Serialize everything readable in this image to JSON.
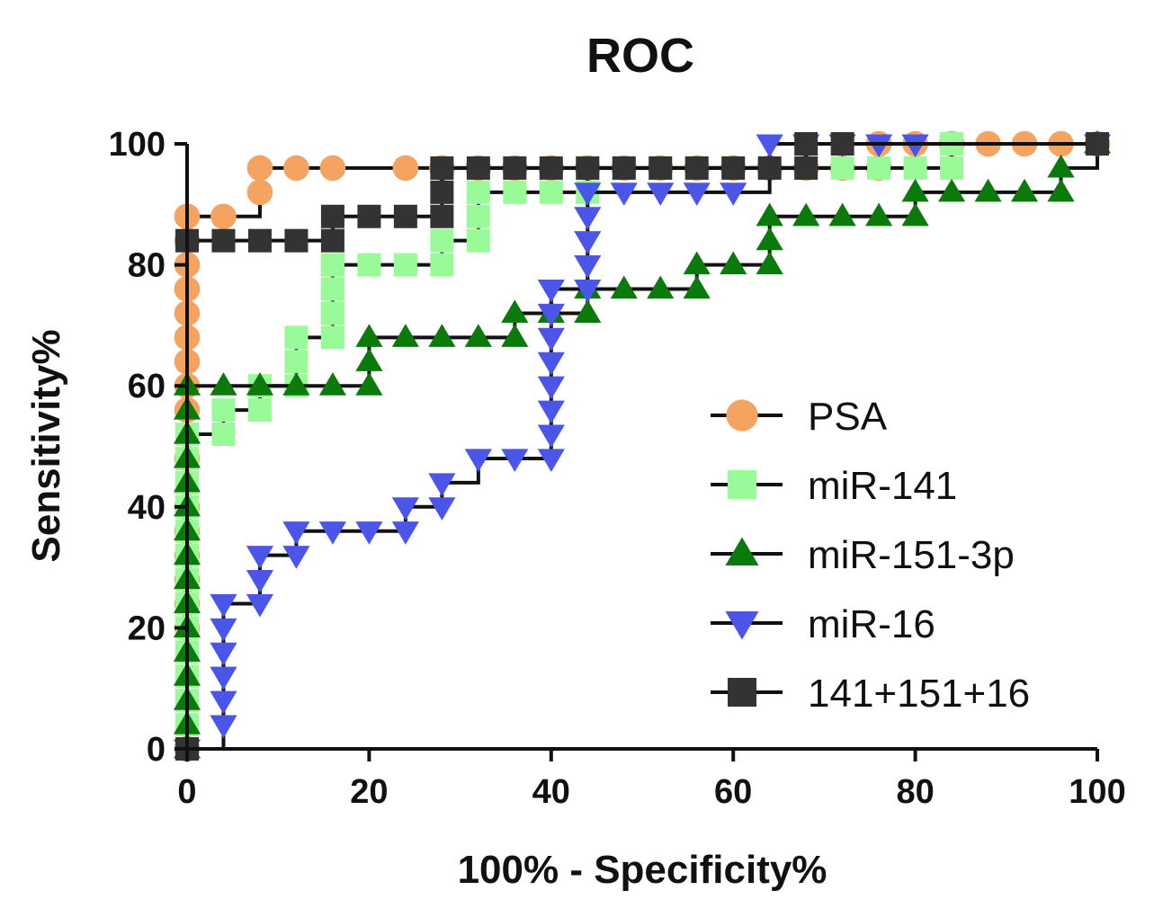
{
  "chart_data": {
    "type": "line",
    "title": "ROC",
    "xlabel": "100% - Specificity%",
    "ylabel": "Sensitivity%",
    "xlim": [
      0,
      100
    ],
    "ylim": [
      0,
      100
    ],
    "x_ticks": [
      "0",
      "20",
      "40",
      "60",
      "80",
      "100"
    ],
    "y_ticks": [
      "0",
      "20",
      "40",
      "60",
      "80",
      "100"
    ],
    "legend_position": "right-middle",
    "series": [
      {
        "name": "PSA",
        "color": "#F4A460",
        "marker": "circle",
        "points": [
          [
            0,
            0
          ],
          [
            0,
            20
          ],
          [
            0,
            24
          ],
          [
            0,
            28
          ],
          [
            0,
            32
          ],
          [
            0,
            36
          ],
          [
            0,
            40
          ],
          [
            0,
            48
          ],
          [
            0,
            56
          ],
          [
            0,
            60
          ],
          [
            0,
            64
          ],
          [
            0,
            68
          ],
          [
            0,
            72
          ],
          [
            0,
            76
          ],
          [
            0,
            80
          ],
          [
            0,
            84
          ],
          [
            0,
            88
          ],
          [
            4,
            88
          ],
          [
            8,
            92
          ],
          [
            8,
            96
          ],
          [
            12,
            96
          ],
          [
            16,
            96
          ],
          [
            24,
            96
          ],
          [
            28,
            96
          ],
          [
            32,
            96
          ],
          [
            36,
            96
          ],
          [
            40,
            96
          ],
          [
            44,
            96
          ],
          [
            48,
            96
          ],
          [
            52,
            96
          ],
          [
            56,
            96
          ],
          [
            60,
            96
          ],
          [
            64,
            96
          ],
          [
            68,
            96
          ],
          [
            72,
            96
          ],
          [
            76,
            96
          ],
          [
            76,
            100
          ],
          [
            80,
            100
          ],
          [
            84,
            100
          ],
          [
            88,
            100
          ],
          [
            92,
            100
          ],
          [
            96,
            100
          ],
          [
            100,
            100
          ]
        ]
      },
      {
        "name": "miR-141",
        "color": "#98FB98",
        "marker": "square",
        "points": [
          [
            0,
            0
          ],
          [
            0,
            4
          ],
          [
            0,
            8
          ],
          [
            0,
            12
          ],
          [
            0,
            16
          ],
          [
            0,
            20
          ],
          [
            0,
            24
          ],
          [
            0,
            28
          ],
          [
            0,
            32
          ],
          [
            0,
            36
          ],
          [
            0,
            40
          ],
          [
            0,
            44
          ],
          [
            0,
            48
          ],
          [
            0,
            52
          ],
          [
            4,
            52
          ],
          [
            4,
            56
          ],
          [
            8,
            56
          ],
          [
            8,
            60
          ],
          [
            12,
            60
          ],
          [
            12,
            64
          ],
          [
            12,
            68
          ],
          [
            16,
            68
          ],
          [
            16,
            72
          ],
          [
            16,
            76
          ],
          [
            16,
            80
          ],
          [
            20,
            80
          ],
          [
            24,
            80
          ],
          [
            28,
            80
          ],
          [
            28,
            84
          ],
          [
            32,
            84
          ],
          [
            32,
            88
          ],
          [
            32,
            92
          ],
          [
            36,
            92
          ],
          [
            40,
            92
          ],
          [
            44,
            92
          ],
          [
            44,
            96
          ],
          [
            48,
            96
          ],
          [
            52,
            96
          ],
          [
            56,
            96
          ],
          [
            60,
            96
          ],
          [
            64,
            96
          ],
          [
            68,
            96
          ],
          [
            72,
            96
          ],
          [
            76,
            96
          ],
          [
            80,
            96
          ],
          [
            84,
            96
          ],
          [
            84,
            100
          ],
          [
            100,
            100
          ]
        ]
      },
      {
        "name": "miR-151-3p",
        "color": "#0A7A0A",
        "marker": "triangle-up",
        "points": [
          [
            0,
            0
          ],
          [
            0,
            4
          ],
          [
            0,
            8
          ],
          [
            0,
            12
          ],
          [
            0,
            16
          ],
          [
            0,
            20
          ],
          [
            0,
            24
          ],
          [
            0,
            28
          ],
          [
            0,
            32
          ],
          [
            0,
            36
          ],
          [
            0,
            40
          ],
          [
            0,
            44
          ],
          [
            0,
            48
          ],
          [
            0,
            52
          ],
          [
            0,
            56
          ],
          [
            0,
            60
          ],
          [
            4,
            60
          ],
          [
            8,
            60
          ],
          [
            12,
            60
          ],
          [
            16,
            60
          ],
          [
            20,
            60
          ],
          [
            20,
            64
          ],
          [
            20,
            68
          ],
          [
            24,
            68
          ],
          [
            28,
            68
          ],
          [
            32,
            68
          ],
          [
            36,
            68
          ],
          [
            36,
            72
          ],
          [
            40,
            72
          ],
          [
            44,
            72
          ],
          [
            44,
            76
          ],
          [
            48,
            76
          ],
          [
            52,
            76
          ],
          [
            56,
            76
          ],
          [
            56,
            80
          ],
          [
            60,
            80
          ],
          [
            64,
            80
          ],
          [
            64,
            84
          ],
          [
            64,
            88
          ],
          [
            68,
            88
          ],
          [
            72,
            88
          ],
          [
            76,
            88
          ],
          [
            80,
            88
          ],
          [
            80,
            92
          ],
          [
            84,
            92
          ],
          [
            88,
            92
          ],
          [
            92,
            92
          ],
          [
            96,
            92
          ],
          [
            96,
            96
          ],
          [
            100,
            100
          ]
        ]
      },
      {
        "name": "miR-16",
        "color": "#4B55E8",
        "marker": "triangle-down",
        "points": [
          [
            0,
            0
          ],
          [
            4,
            4
          ],
          [
            4,
            8
          ],
          [
            4,
            12
          ],
          [
            4,
            16
          ],
          [
            4,
            20
          ],
          [
            4,
            24
          ],
          [
            8,
            24
          ],
          [
            8,
            28
          ],
          [
            8,
            32
          ],
          [
            12,
            32
          ],
          [
            12,
            36
          ],
          [
            16,
            36
          ],
          [
            20,
            36
          ],
          [
            24,
            36
          ],
          [
            24,
            40
          ],
          [
            28,
            40
          ],
          [
            28,
            44
          ],
          [
            32,
            48
          ],
          [
            36,
            48
          ],
          [
            40,
            48
          ],
          [
            40,
            52
          ],
          [
            40,
            56
          ],
          [
            40,
            60
          ],
          [
            40,
            64
          ],
          [
            40,
            68
          ],
          [
            40,
            72
          ],
          [
            40,
            76
          ],
          [
            44,
            76
          ],
          [
            44,
            80
          ],
          [
            44,
            84
          ],
          [
            44,
            88
          ],
          [
            44,
            92
          ],
          [
            48,
            92
          ],
          [
            52,
            92
          ],
          [
            56,
            92
          ],
          [
            60,
            92
          ],
          [
            64,
            100
          ],
          [
            68,
            100
          ],
          [
            72,
            100
          ],
          [
            76,
            100
          ],
          [
            80,
            100
          ],
          [
            100,
            100
          ]
        ]
      },
      {
        "name": "141+151+16",
        "color": "#333333",
        "marker": "square",
        "points": [
          [
            0,
            0
          ],
          [
            0,
            84
          ],
          [
            4,
            84
          ],
          [
            8,
            84
          ],
          [
            12,
            84
          ],
          [
            16,
            84
          ],
          [
            16,
            88
          ],
          [
            20,
            88
          ],
          [
            24,
            88
          ],
          [
            28,
            88
          ],
          [
            28,
            92
          ],
          [
            28,
            96
          ],
          [
            32,
            96
          ],
          [
            36,
            96
          ],
          [
            40,
            96
          ],
          [
            44,
            96
          ],
          [
            48,
            96
          ],
          [
            52,
            96
          ],
          [
            56,
            96
          ],
          [
            60,
            96
          ],
          [
            64,
            96
          ],
          [
            68,
            96
          ],
          [
            68,
            100
          ],
          [
            72,
            100
          ],
          [
            100,
            100
          ]
        ]
      }
    ]
  }
}
